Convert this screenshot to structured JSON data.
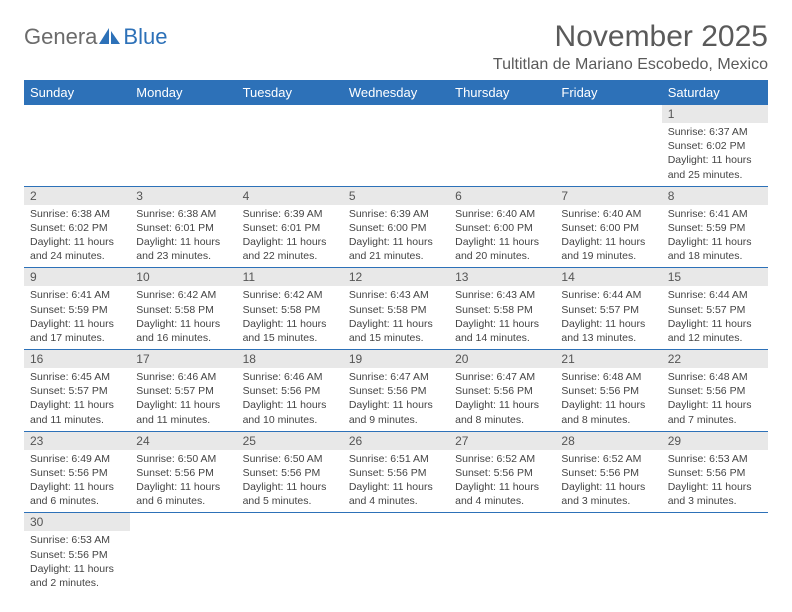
{
  "logo": {
    "part1": "Genera",
    "part2": "Blue"
  },
  "title": "November 2025",
  "subtitle": "Tultitlan de Mariano Escobedo, Mexico",
  "colors": {
    "header_bg": "#2d71b8",
    "header_text": "#ffffff",
    "daynum_bg": "#e8e8e8",
    "border": "#2d71b8",
    "body_text": "#444444"
  },
  "weekdays": [
    "Sunday",
    "Monday",
    "Tuesday",
    "Wednesday",
    "Thursday",
    "Friday",
    "Saturday"
  ],
  "weeks": [
    [
      null,
      null,
      null,
      null,
      null,
      null,
      {
        "n": "1",
        "sr": "Sunrise: 6:37 AM",
        "ss": "Sunset: 6:02 PM",
        "dl": "Daylight: 11 hours and 25 minutes."
      }
    ],
    [
      {
        "n": "2",
        "sr": "Sunrise: 6:38 AM",
        "ss": "Sunset: 6:02 PM",
        "dl": "Daylight: 11 hours and 24 minutes."
      },
      {
        "n": "3",
        "sr": "Sunrise: 6:38 AM",
        "ss": "Sunset: 6:01 PM",
        "dl": "Daylight: 11 hours and 23 minutes."
      },
      {
        "n": "4",
        "sr": "Sunrise: 6:39 AM",
        "ss": "Sunset: 6:01 PM",
        "dl": "Daylight: 11 hours and 22 minutes."
      },
      {
        "n": "5",
        "sr": "Sunrise: 6:39 AM",
        "ss": "Sunset: 6:00 PM",
        "dl": "Daylight: 11 hours and 21 minutes."
      },
      {
        "n": "6",
        "sr": "Sunrise: 6:40 AM",
        "ss": "Sunset: 6:00 PM",
        "dl": "Daylight: 11 hours and 20 minutes."
      },
      {
        "n": "7",
        "sr": "Sunrise: 6:40 AM",
        "ss": "Sunset: 6:00 PM",
        "dl": "Daylight: 11 hours and 19 minutes."
      },
      {
        "n": "8",
        "sr": "Sunrise: 6:41 AM",
        "ss": "Sunset: 5:59 PM",
        "dl": "Daylight: 11 hours and 18 minutes."
      }
    ],
    [
      {
        "n": "9",
        "sr": "Sunrise: 6:41 AM",
        "ss": "Sunset: 5:59 PM",
        "dl": "Daylight: 11 hours and 17 minutes."
      },
      {
        "n": "10",
        "sr": "Sunrise: 6:42 AM",
        "ss": "Sunset: 5:58 PM",
        "dl": "Daylight: 11 hours and 16 minutes."
      },
      {
        "n": "11",
        "sr": "Sunrise: 6:42 AM",
        "ss": "Sunset: 5:58 PM",
        "dl": "Daylight: 11 hours and 15 minutes."
      },
      {
        "n": "12",
        "sr": "Sunrise: 6:43 AM",
        "ss": "Sunset: 5:58 PM",
        "dl": "Daylight: 11 hours and 15 minutes."
      },
      {
        "n": "13",
        "sr": "Sunrise: 6:43 AM",
        "ss": "Sunset: 5:58 PM",
        "dl": "Daylight: 11 hours and 14 minutes."
      },
      {
        "n": "14",
        "sr": "Sunrise: 6:44 AM",
        "ss": "Sunset: 5:57 PM",
        "dl": "Daylight: 11 hours and 13 minutes."
      },
      {
        "n": "15",
        "sr": "Sunrise: 6:44 AM",
        "ss": "Sunset: 5:57 PM",
        "dl": "Daylight: 11 hours and 12 minutes."
      }
    ],
    [
      {
        "n": "16",
        "sr": "Sunrise: 6:45 AM",
        "ss": "Sunset: 5:57 PM",
        "dl": "Daylight: 11 hours and 11 minutes."
      },
      {
        "n": "17",
        "sr": "Sunrise: 6:46 AM",
        "ss": "Sunset: 5:57 PM",
        "dl": "Daylight: 11 hours and 11 minutes."
      },
      {
        "n": "18",
        "sr": "Sunrise: 6:46 AM",
        "ss": "Sunset: 5:56 PM",
        "dl": "Daylight: 11 hours and 10 minutes."
      },
      {
        "n": "19",
        "sr": "Sunrise: 6:47 AM",
        "ss": "Sunset: 5:56 PM",
        "dl": "Daylight: 11 hours and 9 minutes."
      },
      {
        "n": "20",
        "sr": "Sunrise: 6:47 AM",
        "ss": "Sunset: 5:56 PM",
        "dl": "Daylight: 11 hours and 8 minutes."
      },
      {
        "n": "21",
        "sr": "Sunrise: 6:48 AM",
        "ss": "Sunset: 5:56 PM",
        "dl": "Daylight: 11 hours and 8 minutes."
      },
      {
        "n": "22",
        "sr": "Sunrise: 6:48 AM",
        "ss": "Sunset: 5:56 PM",
        "dl": "Daylight: 11 hours and 7 minutes."
      }
    ],
    [
      {
        "n": "23",
        "sr": "Sunrise: 6:49 AM",
        "ss": "Sunset: 5:56 PM",
        "dl": "Daylight: 11 hours and 6 minutes."
      },
      {
        "n": "24",
        "sr": "Sunrise: 6:50 AM",
        "ss": "Sunset: 5:56 PM",
        "dl": "Daylight: 11 hours and 6 minutes."
      },
      {
        "n": "25",
        "sr": "Sunrise: 6:50 AM",
        "ss": "Sunset: 5:56 PM",
        "dl": "Daylight: 11 hours and 5 minutes."
      },
      {
        "n": "26",
        "sr": "Sunrise: 6:51 AM",
        "ss": "Sunset: 5:56 PM",
        "dl": "Daylight: 11 hours and 4 minutes."
      },
      {
        "n": "27",
        "sr": "Sunrise: 6:52 AM",
        "ss": "Sunset: 5:56 PM",
        "dl": "Daylight: 11 hours and 4 minutes."
      },
      {
        "n": "28",
        "sr": "Sunrise: 6:52 AM",
        "ss": "Sunset: 5:56 PM",
        "dl": "Daylight: 11 hours and 3 minutes."
      },
      {
        "n": "29",
        "sr": "Sunrise: 6:53 AM",
        "ss": "Sunset: 5:56 PM",
        "dl": "Daylight: 11 hours and 3 minutes."
      }
    ],
    [
      {
        "n": "30",
        "sr": "Sunrise: 6:53 AM",
        "ss": "Sunset: 5:56 PM",
        "dl": "Daylight: 11 hours and 2 minutes."
      },
      null,
      null,
      null,
      null,
      null,
      null
    ]
  ]
}
